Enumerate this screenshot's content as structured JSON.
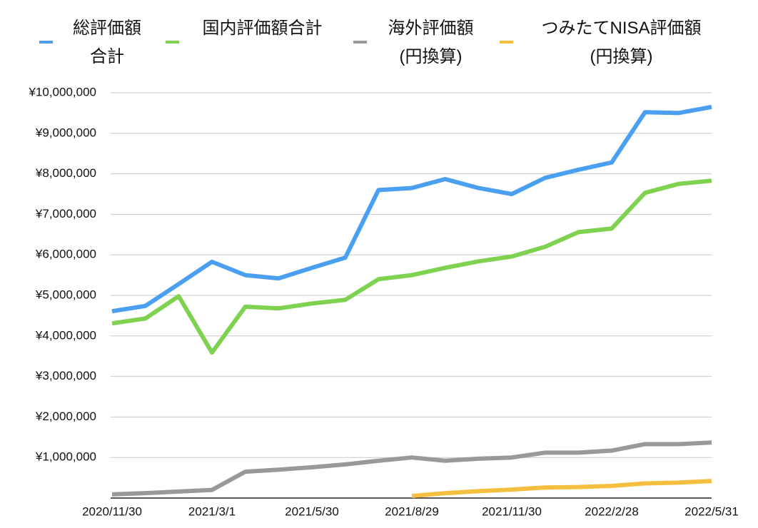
{
  "chart_data": {
    "type": "line",
    "categories": [
      "2020/11/30",
      null,
      null,
      "2021/3/1",
      null,
      null,
      "2021/5/30",
      null,
      null,
      "2021/8/29",
      null,
      null,
      "2021/11/30",
      null,
      null,
      "2022/2/28",
      null,
      null,
      "2022/5/31"
    ],
    "series": [
      {
        "name": "総評価額\n合計",
        "color": "#4a9ff0",
        "values": [
          4610000,
          4740000,
          5280000,
          5830000,
          5500000,
          5420000,
          5680000,
          5930000,
          7600000,
          7650000,
          7870000,
          7650000,
          7500000,
          7900000,
          8100000,
          8280000,
          9520000,
          9500000,
          9650000
        ]
      },
      {
        "name": "国内評価額合計",
        "color": "#7ed250",
        "values": [
          4310000,
          4430000,
          4980000,
          3590000,
          4720000,
          4680000,
          4800000,
          4890000,
          5400000,
          5500000,
          5680000,
          5840000,
          5960000,
          6200000,
          6560000,
          6650000,
          7530000,
          7750000,
          7830000
        ]
      },
      {
        "name": "海外評価額\n(円換算)",
        "color": "#999999",
        "values": [
          90000,
          120000,
          160000,
          200000,
          650000,
          700000,
          760000,
          830000,
          920000,
          1000000,
          920000,
          970000,
          1000000,
          1120000,
          1120000,
          1170000,
          1330000,
          1330000,
          1370000
        ]
      },
      {
        "name": "つみたてNISA評価額\n(円換算)",
        "color": "#f4bf3f",
        "values": [
          null,
          null,
          null,
          null,
          null,
          null,
          null,
          null,
          null,
          50000,
          120000,
          170000,
          210000,
          260000,
          270000,
          300000,
          360000,
          380000,
          420000
        ]
      }
    ],
    "ylim": [
      0,
      10000000
    ],
    "yticks": [
      {
        "value": 1000000,
        "label": "¥1,000,000"
      },
      {
        "value": 2000000,
        "label": "¥2,000,000"
      },
      {
        "value": 3000000,
        "label": "¥3,000,000"
      },
      {
        "value": 4000000,
        "label": "¥4,000,000"
      },
      {
        "value": 5000000,
        "label": "¥5,000,000"
      },
      {
        "value": 6000000,
        "label": "¥6,000,000"
      },
      {
        "value": 7000000,
        "label": "¥7,000,000"
      },
      {
        "value": 8000000,
        "label": "¥8,000,000"
      },
      {
        "value": 9000000,
        "label": "¥9,000,000"
      },
      {
        "value": 10000000,
        "label": "¥10,000,000"
      }
    ],
    "grid": true,
    "legend": "top"
  }
}
